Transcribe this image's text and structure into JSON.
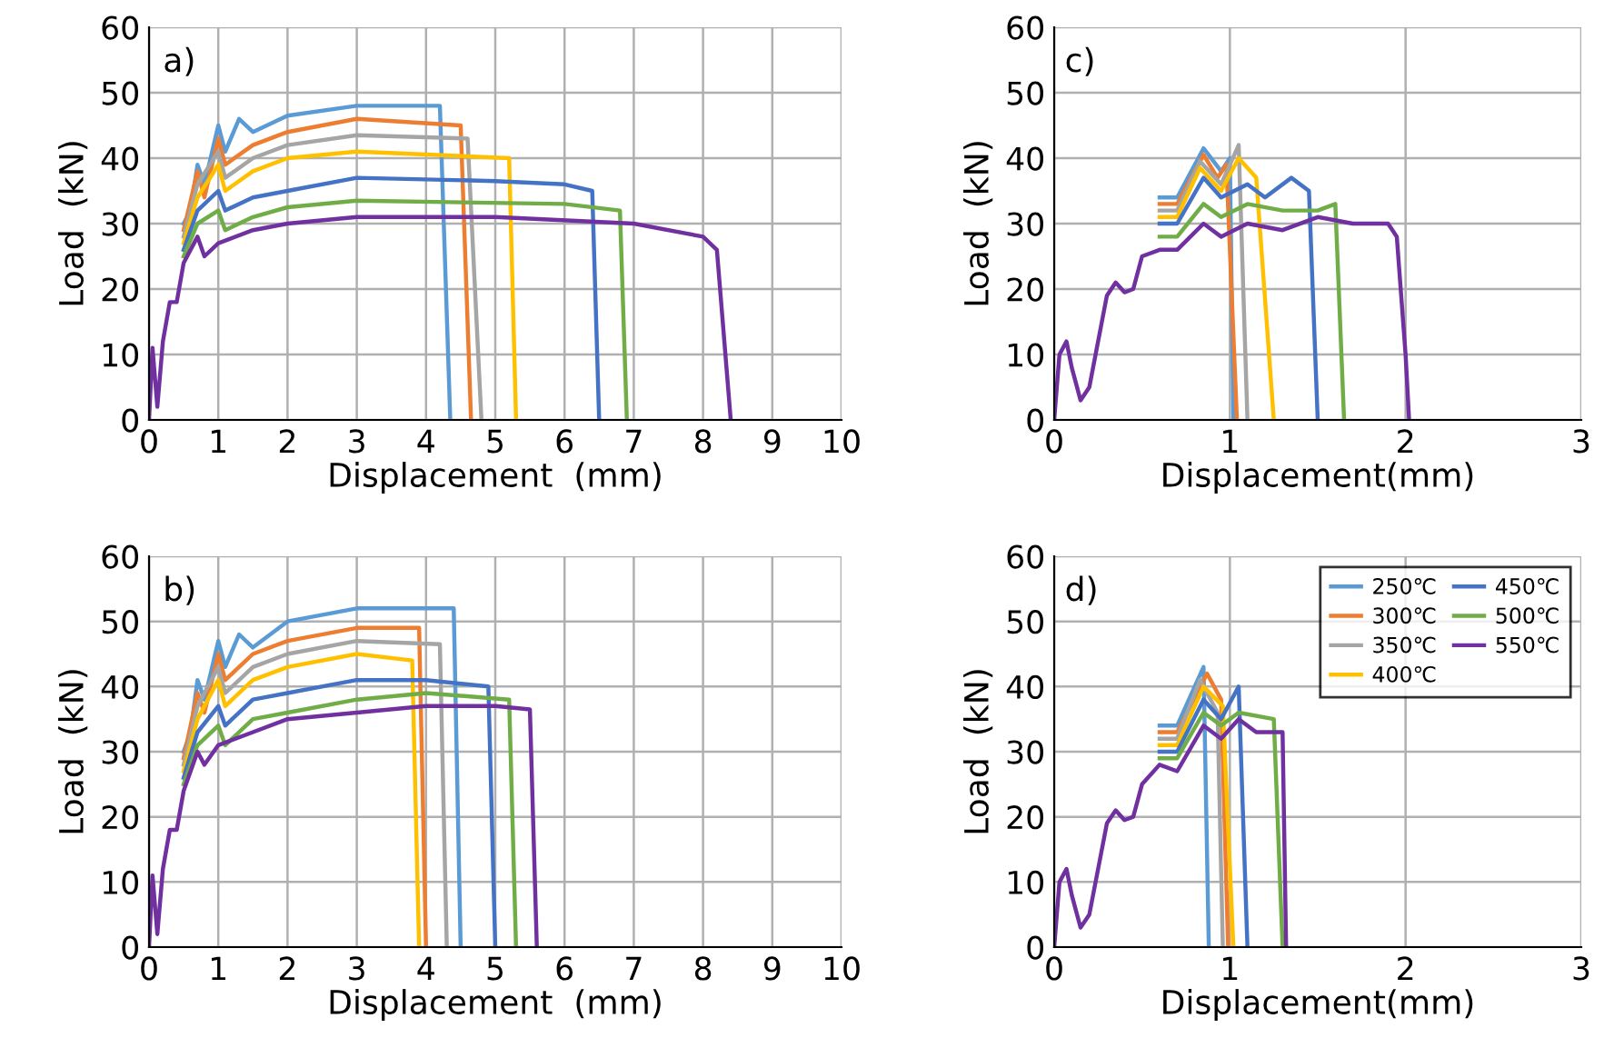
{
  "chart_data": [
    {
      "type": "line",
      "xlabel": "Displacement  (mm)",
      "ylabel": "Load  (kN)",
      "annotations": [
        "a)"
      ],
      "xlim": [
        0,
        10
      ],
      "xticks": [
        0,
        1,
        2,
        3,
        4,
        5,
        6,
        7,
        8,
        9,
        10
      ],
      "ylim": [
        0,
        60
      ],
      "yticks": [
        0,
        10,
        20,
        30,
        40,
        50,
        60
      ],
      "grid": true,
      "legend": false,
      "series": [
        {
          "color": "#5b9bd5",
          "x": [
            0.5,
            0.6,
            0.7,
            0.8,
            1.0,
            1.1,
            1.3,
            1.5,
            2,
            3,
            4.2,
            4.35
          ],
          "values": [
            30,
            32,
            39,
            36,
            45,
            41,
            46,
            44,
            46.5,
            48,
            48,
            0
          ]
        },
        {
          "color": "#ed7d31",
          "x": [
            0.5,
            0.7,
            0.8,
            1.0,
            1.1,
            1.5,
            2,
            3,
            4.5,
            4.65
          ],
          "values": [
            29,
            38,
            34,
            43,
            39,
            42,
            44,
            46,
            45,
            0
          ]
        },
        {
          "color": "#a5a5a5",
          "x": [
            0.5,
            0.7,
            1.0,
            1.1,
            1.5,
            2,
            3,
            4.6,
            4.8
          ],
          "values": [
            28,
            36,
            41,
            37,
            40,
            42,
            43.5,
            43,
            0
          ]
        },
        {
          "color": "#ffc000",
          "x": [
            0.5,
            0.7,
            1.0,
            1.1,
            1.5,
            2,
            3,
            5.2,
            5.3
          ],
          "values": [
            27,
            34,
            39,
            35,
            38,
            40,
            41,
            40,
            0
          ]
        },
        {
          "color": "#4472c4",
          "x": [
            0.5,
            0.7,
            1.0,
            1.1,
            1.5,
            2,
            3,
            5,
            6,
            6.4,
            6.5
          ],
          "values": [
            26,
            32,
            35,
            32,
            34,
            35,
            37,
            36.5,
            36,
            35,
            0
          ]
        },
        {
          "color": "#70ad47",
          "x": [
            0.5,
            0.7,
            1.0,
            1.1,
            1.5,
            2,
            3,
            6,
            6.8,
            6.9
          ],
          "values": [
            25,
            30,
            32,
            29,
            31,
            32.5,
            33.5,
            33,
            32,
            0
          ]
        },
        {
          "color": "#7030a0",
          "x": [
            0,
            0.05,
            0.12,
            0.2,
            0.3,
            0.4,
            0.5,
            0.7,
            0.8,
            1.0,
            1.5,
            2,
            3,
            5,
            7,
            8,
            8.2,
            8.4
          ],
          "values": [
            0,
            11,
            2,
            12,
            18,
            18,
            24,
            28,
            25,
            27,
            29,
            30,
            31,
            31,
            30,
            28,
            26,
            0
          ]
        }
      ]
    },
    {
      "type": "line",
      "xlabel": "Displacement(mm)",
      "ylabel": "Load  (kN)",
      "annotations": [
        "c)"
      ],
      "xlim": [
        0,
        3
      ],
      "xticks": [
        0,
        1,
        2,
        3
      ],
      "ylim": [
        0,
        60
      ],
      "yticks": [
        0,
        10,
        20,
        30,
        40,
        50,
        60
      ],
      "grid": true,
      "legend": false,
      "series": [
        {
          "color": "#5b9bd5",
          "x": [
            0.6,
            0.7,
            0.85,
            0.95,
            1.0,
            1.02
          ],
          "values": [
            34,
            34,
            41.5,
            38,
            40,
            0
          ]
        },
        {
          "color": "#ed7d31",
          "x": [
            0.6,
            0.7,
            0.85,
            0.93,
            0.98,
            1.04
          ],
          "values": [
            33,
            33,
            40.5,
            37,
            39,
            0
          ]
        },
        {
          "color": "#a5a5a5",
          "x": [
            0.6,
            0.7,
            0.83,
            0.95,
            1.05,
            1.1
          ],
          "values": [
            32,
            32,
            39.5,
            36,
            42,
            0
          ]
        },
        {
          "color": "#ffc000",
          "x": [
            0.6,
            0.7,
            0.83,
            0.95,
            1.05,
            1.15,
            1.25
          ],
          "values": [
            31,
            31,
            38.5,
            35,
            40,
            37,
            0
          ]
        },
        {
          "color": "#4472c4",
          "x": [
            0.6,
            0.7,
            0.85,
            0.95,
            1.1,
            1.2,
            1.35,
            1.45,
            1.5
          ],
          "values": [
            30,
            30,
            37,
            34,
            36,
            34,
            37,
            35,
            0
          ]
        },
        {
          "color": "#70ad47",
          "x": [
            0.6,
            0.7,
            0.85,
            0.95,
            1.1,
            1.3,
            1.5,
            1.6,
            1.65
          ],
          "values": [
            28,
            28,
            33,
            31,
            33,
            32,
            32,
            33,
            0
          ]
        },
        {
          "color": "#7030a0",
          "x": [
            0,
            0.03,
            0.07,
            0.1,
            0.15,
            0.2,
            0.3,
            0.35,
            0.4,
            0.45,
            0.5,
            0.6,
            0.7,
            0.85,
            0.95,
            1.1,
            1.3,
            1.5,
            1.7,
            1.9,
            1.95,
            2.0,
            2.02
          ],
          "values": [
            0,
            10,
            12,
            8,
            3,
            5,
            19,
            21,
            19.5,
            20,
            25,
            26,
            26,
            30,
            28,
            30,
            29,
            31,
            30,
            30,
            28,
            10,
            0
          ]
        }
      ]
    },
    {
      "type": "line",
      "xlabel": "Displacement  (mm)",
      "ylabel": "Load  (kN)",
      "annotations": [
        "b)"
      ],
      "xlim": [
        0,
        10
      ],
      "xticks": [
        0,
        1,
        2,
        3,
        4,
        5,
        6,
        7,
        8,
        9,
        10
      ],
      "ylim": [
        0,
        60
      ],
      "yticks": [
        0,
        10,
        20,
        30,
        40,
        50,
        60
      ],
      "grid": true,
      "legend": false,
      "series": [
        {
          "color": "#5b9bd5",
          "x": [
            0.5,
            0.6,
            0.7,
            0.8,
            1.0,
            1.1,
            1.3,
            1.5,
            2,
            3,
            4.4,
            4.5
          ],
          "values": [
            30,
            33,
            41,
            38,
            47,
            43,
            48,
            46,
            50,
            52,
            52,
            0
          ]
        },
        {
          "color": "#ed7d31",
          "x": [
            0.5,
            0.7,
            0.8,
            1.0,
            1.1,
            1.5,
            2,
            3,
            3.9,
            4.0
          ],
          "values": [
            29,
            39,
            36,
            45,
            41,
            45,
            47,
            49,
            49,
            0
          ]
        },
        {
          "color": "#a5a5a5",
          "x": [
            0.5,
            0.7,
            1.0,
            1.1,
            1.5,
            2,
            3,
            4.2,
            4.3
          ],
          "values": [
            28,
            37,
            43,
            39,
            43,
            45,
            47,
            46.5,
            0
          ]
        },
        {
          "color": "#ffc000",
          "x": [
            0.5,
            0.7,
            1.0,
            1.1,
            1.5,
            2,
            3,
            3.8,
            3.9
          ],
          "values": [
            27,
            35,
            41,
            37,
            41,
            43,
            45,
            44,
            0
          ]
        },
        {
          "color": "#4472c4",
          "x": [
            0.5,
            0.7,
            1.0,
            1.1,
            1.5,
            2,
            3,
            4,
            4.9,
            5.0
          ],
          "values": [
            26,
            33,
            37,
            34,
            38,
            39,
            41,
            41,
            40,
            0
          ]
        },
        {
          "color": "#70ad47",
          "x": [
            0.5,
            0.7,
            1.0,
            1.1,
            1.5,
            2,
            3,
            4,
            5.2,
            5.3
          ],
          "values": [
            25,
            31,
            34,
            31,
            35,
            36,
            38,
            39,
            38,
            0
          ]
        },
        {
          "color": "#7030a0",
          "x": [
            0,
            0.05,
            0.12,
            0.2,
            0.3,
            0.4,
            0.5,
            0.7,
            0.8,
            1.0,
            1.5,
            2,
            3,
            4,
            5,
            5.5,
            5.6
          ],
          "values": [
            0,
            11,
            2,
            12,
            18,
            18,
            24,
            30,
            28,
            31,
            33,
            35,
            36,
            37,
            37,
            36.5,
            0
          ]
        }
      ]
    },
    {
      "type": "line",
      "xlabel": "Displacement(mm)",
      "ylabel": "Load  (kN)",
      "annotations": [
        "d)"
      ],
      "xlim": [
        0,
        3
      ],
      "xticks": [
        0,
        1,
        2,
        3
      ],
      "ylim": [
        0,
        60
      ],
      "yticks": [
        0,
        10,
        20,
        30,
        40,
        50,
        60
      ],
      "grid": true,
      "legend": "top right",
      "series": [
        {
          "name": "250℃",
          "color": "#5b9bd5",
          "x": [
            0.6,
            0.7,
            0.85,
            0.88
          ],
          "values": [
            34,
            34,
            43,
            0
          ]
        },
        {
          "name": "300℃",
          "color": "#ed7d31",
          "x": [
            0.6,
            0.7,
            0.87,
            0.95,
            0.99
          ],
          "values": [
            33,
            33,
            42,
            38,
            0
          ]
        },
        {
          "name": "350℃",
          "color": "#a5a5a5",
          "x": [
            0.6,
            0.7,
            0.83,
            0.93,
            0.96
          ],
          "values": [
            32,
            32,
            41,
            36,
            0
          ]
        },
        {
          "name": "400℃",
          "color": "#ffc000",
          "x": [
            0.6,
            0.7,
            0.85,
            0.96,
            1.02
          ],
          "values": [
            31,
            31,
            40,
            37,
            0
          ]
        },
        {
          "name": "450℃",
          "color": "#4472c4",
          "x": [
            0.6,
            0.7,
            0.85,
            0.95,
            1.05,
            1.1
          ],
          "values": [
            30,
            30,
            38,
            35,
            40,
            0
          ]
        },
        {
          "name": "500℃",
          "color": "#70ad47",
          "x": [
            0.6,
            0.7,
            0.85,
            0.95,
            1.05,
            1.25,
            1.3
          ],
          "values": [
            29,
            29,
            36,
            34,
            36,
            35,
            0
          ]
        },
        {
          "name": "550℃",
          "color": "#7030a0",
          "x": [
            0,
            0.03,
            0.07,
            0.1,
            0.15,
            0.2,
            0.3,
            0.35,
            0.4,
            0.45,
            0.5,
            0.6,
            0.7,
            0.85,
            0.95,
            1.05,
            1.15,
            1.3,
            1.32
          ],
          "values": [
            0,
            10,
            12,
            8,
            3,
            5,
            19,
            21,
            19.5,
            20,
            25,
            28,
            27,
            34,
            32,
            35,
            33,
            33,
            0
          ]
        }
      ]
    }
  ]
}
